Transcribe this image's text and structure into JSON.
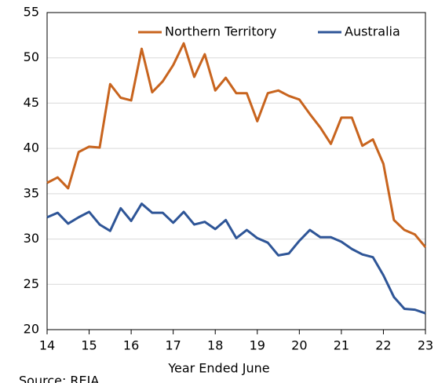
{
  "chart_data": {
    "type": "line",
    "x": [
      14,
      14.25,
      14.5,
      14.75,
      15,
      15.25,
      15.5,
      15.75,
      16,
      16.25,
      16.5,
      16.75,
      17,
      17.25,
      17.5,
      17.75,
      18,
      18.25,
      18.5,
      18.75,
      19,
      19.25,
      19.5,
      19.75,
      20,
      20.25,
      20.5,
      20.75,
      21,
      21.25,
      21.5,
      21.75,
      22,
      22.25,
      22.5,
      22.75,
      23
    ],
    "series": [
      {
        "name": "Northern Territory",
        "color": "#c8641e",
        "values": [
          36.2,
          36.8,
          35.6,
          39.6,
          40.2,
          40.1,
          47.1,
          45.6,
          45.3,
          51.0,
          46.2,
          47.4,
          49.2,
          51.6,
          47.9,
          50.4,
          46.4,
          47.8,
          46.1,
          46.1,
          43.0,
          46.1,
          46.4,
          45.8,
          45.4,
          43.8,
          42.3,
          40.5,
          43.4,
          43.4,
          40.3,
          41.0,
          38.3,
          32.1,
          31.0,
          30.5,
          29.1
        ]
      },
      {
        "name": "Australia",
        "color": "#2e5597",
        "values": [
          32.4,
          32.9,
          31.7,
          32.4,
          33.0,
          31.6,
          30.9,
          33.4,
          32.0,
          33.9,
          32.9,
          32.9,
          31.8,
          33.0,
          31.6,
          31.9,
          31.1,
          32.1,
          30.1,
          31.0,
          30.1,
          29.6,
          28.2,
          28.4,
          29.8,
          31.0,
          30.2,
          30.2,
          29.7,
          28.9,
          28.3,
          28.0,
          26.0,
          23.6,
          22.3,
          22.2,
          21.8
        ]
      }
    ],
    "xlim": [
      14,
      23
    ],
    "xticks": [
      14,
      15,
      16,
      17,
      18,
      19,
      20,
      21,
      22,
      23
    ],
    "ylim": [
      20,
      55
    ],
    "yticks": [
      20,
      25,
      30,
      35,
      40,
      45,
      50,
      55
    ],
    "grid": true,
    "legend": "top",
    "xlabel": "Year Ended June",
    "source": "Source: REIA"
  }
}
